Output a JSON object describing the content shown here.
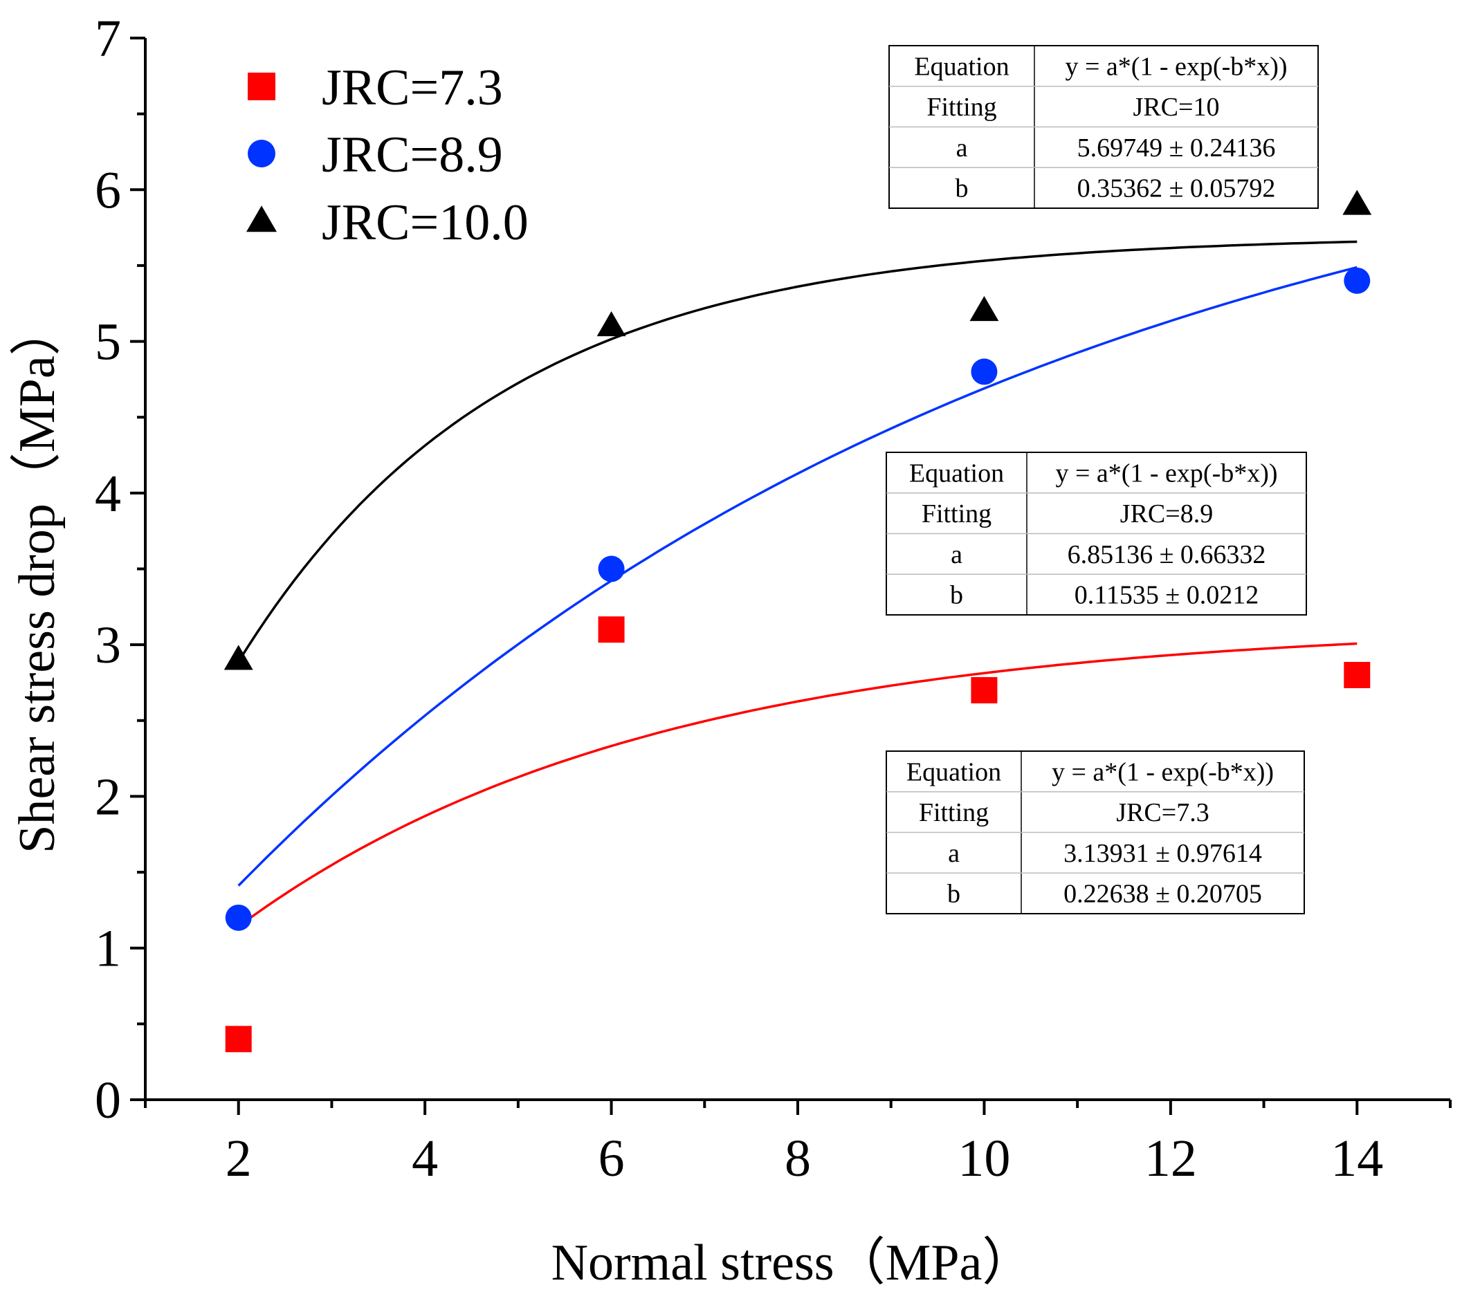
{
  "chart_data": {
    "type": "scatter",
    "title": "",
    "xlabel": "Normal stress（MPa）",
    "ylabel": "Shear stress drop（MPa）",
    "xlim": [
      1,
      15
    ],
    "ylim": [
      0,
      7
    ],
    "x_ticks": [
      2,
      4,
      6,
      8,
      10,
      12,
      14
    ],
    "y_ticks": [
      0,
      1,
      2,
      3,
      4,
      5,
      6,
      7
    ],
    "grid": false,
    "legend_position": "top-left",
    "series": [
      {
        "name": "JRC=7.3",
        "marker": "square",
        "color": "#ff0000",
        "x": [
          2,
          6,
          10,
          14
        ],
        "y": [
          0.4,
          3.1,
          2.7,
          2.8
        ],
        "fit": {
          "model": "y = a*(1 - exp(-b*x))",
          "a": 3.13931,
          "b": 0.22638,
          "x_range": [
            2,
            14
          ]
        }
      },
      {
        "name": "JRC=8.9",
        "marker": "circle",
        "color": "#0033ff",
        "x": [
          2,
          6,
          10,
          14
        ],
        "y": [
          1.2,
          3.5,
          4.8,
          5.4
        ],
        "fit": {
          "model": "y = a*(1 - exp(-b*x))",
          "a": 6.85136,
          "b": 0.11535,
          "x_range": [
            2,
            14
          ]
        }
      },
      {
        "name": "JRC=10.0",
        "marker": "triangle",
        "color": "#000000",
        "x": [
          2,
          6,
          10,
          14
        ],
        "y": [
          2.9,
          5.1,
          5.2,
          5.9
        ],
        "fit": {
          "model": "y = a*(1 - exp(-b*x))",
          "a": 5.69749,
          "b": 0.35362,
          "x_range": [
            2,
            14
          ]
        }
      }
    ],
    "fit_tables": [
      {
        "rows": [
          [
            "Equation",
            "y = a*(1 - exp(-b*x))"
          ],
          [
            "Fitting",
            "JRC=10"
          ],
          [
            "a",
            "5.69749 ± 0.24136"
          ],
          [
            "b",
            "0.35362 ± 0.05792"
          ]
        ]
      },
      {
        "rows": [
          [
            "Equation",
            "y = a*(1 - exp(-b*x))"
          ],
          [
            "Fitting",
            "JRC=8.9"
          ],
          [
            "a",
            "6.85136 ± 0.66332"
          ],
          [
            "b",
            "0.11535 ± 0.0212"
          ]
        ]
      },
      {
        "rows": [
          [
            "Equation",
            "y = a*(1 - exp(-b*x))"
          ],
          [
            "Fitting",
            "JRC=7.3"
          ],
          [
            "a",
            "3.13931 ± 0.97614"
          ],
          [
            "b",
            "0.22638 ± 0.20705"
          ]
        ]
      }
    ]
  }
}
